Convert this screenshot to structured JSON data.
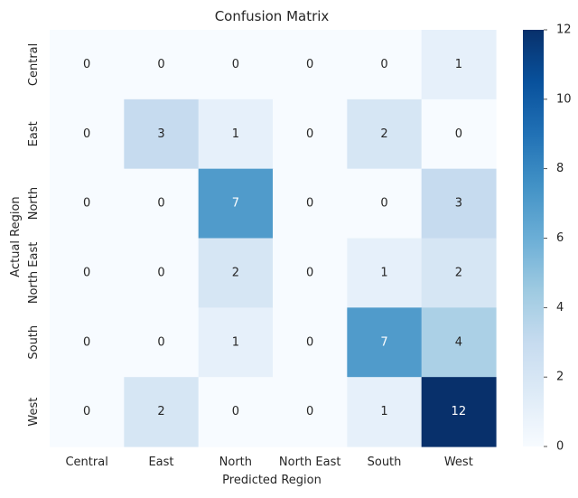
{
  "chart_data": {
    "type": "heatmap",
    "title": "Confusion Matrix",
    "xlabel": "Predicted Region",
    "ylabel": "Actual Region",
    "x_categories": [
      "Central",
      "East",
      "North",
      "North East",
      "South",
      "West"
    ],
    "y_categories": [
      "Central",
      "East",
      "North",
      "North East",
      "South",
      "West"
    ],
    "values": [
      [
        0,
        0,
        0,
        0,
        0,
        1
      ],
      [
        0,
        3,
        1,
        0,
        2,
        0
      ],
      [
        0,
        0,
        7,
        0,
        0,
        3
      ],
      [
        0,
        0,
        2,
        0,
        1,
        2
      ],
      [
        0,
        0,
        1,
        0,
        7,
        4
      ],
      [
        0,
        2,
        0,
        0,
        1,
        12
      ]
    ],
    "vmin": 0,
    "vmax": 12,
    "colormap": "Blues",
    "colorbar_ticks": [
      0,
      2,
      4,
      6,
      8,
      10,
      12
    ],
    "annotated": true,
    "grid": false
  }
}
